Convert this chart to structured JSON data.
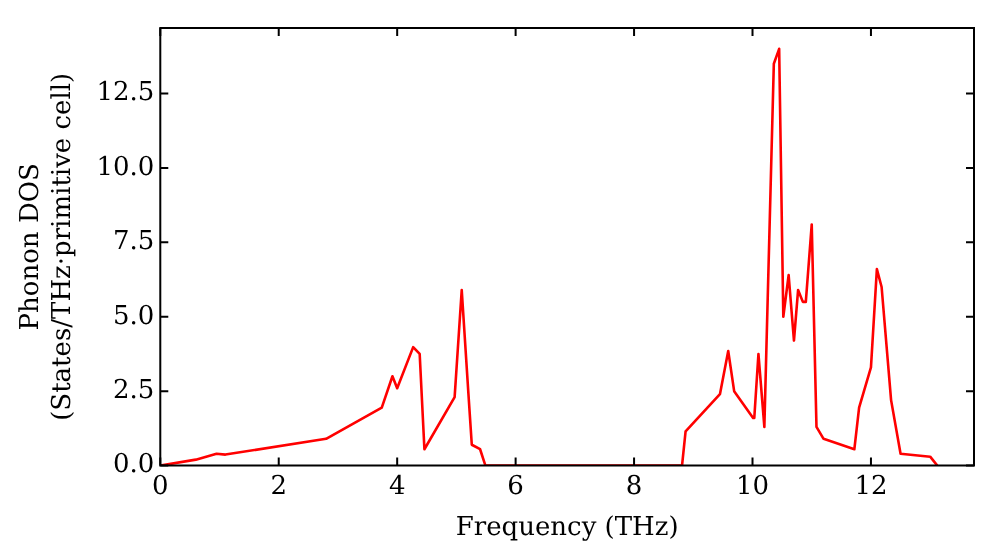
{
  "chart_data": {
    "type": "line",
    "xlabel": "Frequency (THz)",
    "ylabel": "Phonon DOS\n(States/THz·primitive cell)",
    "x": [
      0,
      0.6,
      0.95,
      1.1,
      2.8,
      3.74,
      3.92,
      4.0,
      4.27,
      4.38,
      4.46,
      4.97,
      5.09,
      5.2,
      5.26,
      5.4,
      5.49,
      8.81,
      8.87,
      9.45,
      9.59,
      9.69,
      10.01,
      10.03,
      10.1,
      10.2,
      10.36,
      10.45,
      10.52,
      10.61,
      10.7,
      10.77,
      10.85,
      10.9,
      11.0,
      11.08,
      11.2,
      11.72,
      11.8,
      12.0,
      12.1,
      12.18,
      12.34,
      12.5,
      13.0,
      13.12
    ],
    "series": [
      {
        "color": "#ff0000",
        "values": [
          0,
          0.2,
          0.4,
          0.37,
          0.9,
          1.95,
          3.0,
          2.6,
          3.98,
          3.75,
          0.55,
          2.3,
          5.9,
          2.5,
          0.7,
          0.55,
          0,
          0,
          1.15,
          2.4,
          3.85,
          2.5,
          1.6,
          1.6,
          3.75,
          1.3,
          13.5,
          14.0,
          5.0,
          6.4,
          4.2,
          5.9,
          5.5,
          5.5,
          8.1,
          1.3,
          0.9,
          0.55,
          1.95,
          3.3,
          6.6,
          6.0,
          2.2,
          0.4,
          0.3,
          0
        ]
      }
    ],
    "xlim": [
      0,
      13.74
    ],
    "ylim": [
      0,
      14.7
    ],
    "xticks": [
      0,
      2,
      4,
      6,
      8,
      10,
      12
    ],
    "yticks": [
      {
        "value": 0,
        "label": "0.0"
      },
      {
        "value": 2.5,
        "label": "2.5"
      },
      {
        "value": 5,
        "label": "5.0"
      },
      {
        "value": 7.5,
        "label": "7.5"
      },
      {
        "value": 10,
        "label": "10.0"
      },
      {
        "value": 12.5,
        "label": "12.5"
      }
    ],
    "grid": false,
    "legend": false,
    "marker": "none",
    "line_style": "solid"
  }
}
